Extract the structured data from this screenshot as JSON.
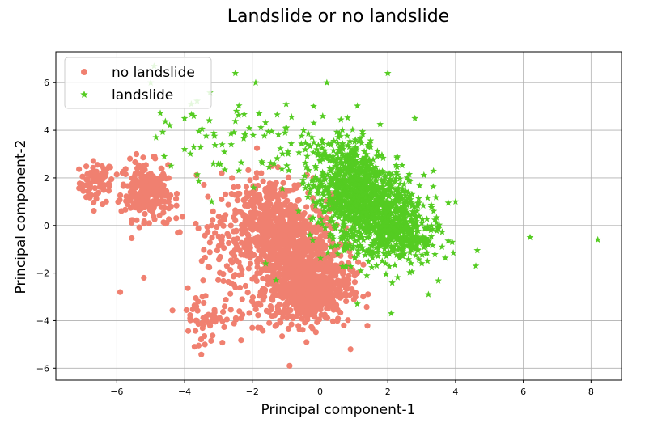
{
  "chart_data": {
    "type": "scatter",
    "title": "Landslide or no landslide",
    "xlabel": "Principal component-1",
    "ylabel": "Principal component-2",
    "xlim": [
      -7.8,
      8.9
    ],
    "ylim": [
      -6.5,
      7.3
    ],
    "xticks": [
      -6,
      -4,
      -2,
      0,
      2,
      4,
      6,
      8
    ],
    "yticks": [
      -6,
      -4,
      -2,
      0,
      2,
      4,
      6
    ],
    "grid": true,
    "legend": {
      "placement": "top-left"
    },
    "series": [
      {
        "name": "no landslide",
        "marker": "circle",
        "color": "#F08070",
        "clusters": [
          {
            "cx": -6.6,
            "cy": 1.8,
            "sx": 0.25,
            "sy": 0.45,
            "n": 70
          },
          {
            "cx": -5.2,
            "cy": 1.5,
            "sx": 0.35,
            "sy": 0.6,
            "n": 220
          },
          {
            "cx": -4.7,
            "cy": 1.0,
            "sx": 0.25,
            "sy": 0.5,
            "n": 40
          },
          {
            "cx": -1.6,
            "cy": 0.3,
            "sx": 0.6,
            "sy": 0.9,
            "n": 300
          },
          {
            "cx": -0.8,
            "cy": -1.2,
            "sx": 0.7,
            "sy": 1.1,
            "n": 700
          },
          {
            "cx": -0.3,
            "cy": -2.7,
            "sx": 0.6,
            "sy": 0.7,
            "n": 500
          },
          {
            "cx": -3.2,
            "cy": -3.8,
            "sx": 0.5,
            "sy": 0.6,
            "n": 60
          },
          {
            "cx": -2.8,
            "cy": -0.5,
            "sx": 0.6,
            "sy": 1.2,
            "n": 80
          }
        ],
        "points": [
          [
            -5.9,
            -2.8
          ],
          [
            -5.2,
            -2.2
          ],
          [
            -0.9,
            -5.9
          ],
          [
            -3.4,
            -5.0
          ],
          [
            -0.4,
            -4.9
          ],
          [
            -2.9,
            2.2
          ],
          [
            -2.6,
            2.0
          ],
          [
            -4.4,
            0.8
          ],
          [
            -4.2,
            -0.3
          ],
          [
            -2.0,
            -4.3
          ],
          [
            0.9,
            -5.2
          ],
          [
            -1.5,
            -4.1
          ],
          [
            -3.6,
            -3.2
          ],
          [
            -2.5,
            -2.6
          ]
        ]
      },
      {
        "name": "landslide",
        "marker": "star",
        "color": "#55CC22",
        "clusters": [
          {
            "cx": 0.9,
            "cy": 1.8,
            "sx": 0.55,
            "sy": 0.9,
            "n": 600
          },
          {
            "cx": 1.7,
            "cy": 0.4,
            "sx": 0.7,
            "sy": 0.9,
            "n": 700
          },
          {
            "cx": 2.5,
            "cy": -0.5,
            "sx": 0.5,
            "sy": 0.6,
            "n": 200
          },
          {
            "cx": -0.4,
            "cy": 3.0,
            "sx": 0.8,
            "sy": 0.8,
            "n": 60
          },
          {
            "cx": -2.8,
            "cy": 3.6,
            "sx": 0.9,
            "sy": 0.8,
            "n": 50
          }
        ],
        "points": [
          [
            -4.9,
            6.7
          ],
          [
            -5.0,
            6.0
          ],
          [
            -3.8,
            5.1
          ],
          [
            -2.5,
            6.4
          ],
          [
            -1.9,
            6.0
          ],
          [
            0.2,
            6.0
          ],
          [
            2.0,
            6.4
          ],
          [
            -4.6,
            2.9
          ],
          [
            -4.4,
            2.5
          ],
          [
            -3.2,
            1.0
          ],
          [
            -2.4,
            2.3
          ],
          [
            6.2,
            -0.5
          ],
          [
            8.2,
            -0.6
          ],
          [
            4.6,
            -1.7
          ],
          [
            3.9,
            -0.7
          ],
          [
            3.6,
            -0.9
          ],
          [
            3.2,
            -2.9
          ],
          [
            2.1,
            -3.7
          ],
          [
            1.1,
            -3.3
          ],
          [
            -1.3,
            -2.3
          ],
          [
            -1.6,
            -1.6
          ],
          [
            4.0,
            1.0
          ],
          [
            2.8,
            4.5
          ],
          [
            -1.8,
            4.7
          ],
          [
            -1.0,
            5.1
          ],
          [
            -4.0,
            4.5
          ]
        ]
      }
    ]
  }
}
